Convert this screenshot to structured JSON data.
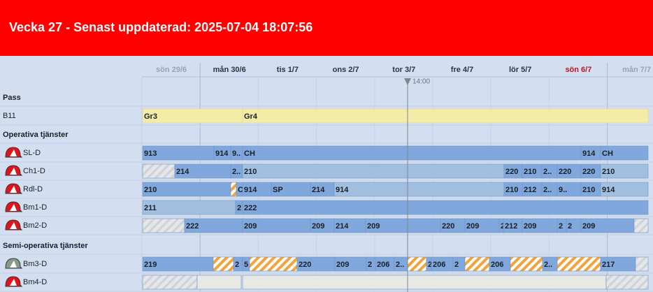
{
  "header": {
    "title": "Vecka 27 - Senast uppdaterad: 2025-07-04 18:07:56"
  },
  "days": [
    {
      "label": "sön 29/6",
      "color": "#9aa4b0"
    },
    {
      "label": "mån 30/6",
      "color": "#2b3340"
    },
    {
      "label": "tis 1/7",
      "color": "#2b3340"
    },
    {
      "label": "ons 2/7",
      "color": "#2b3340"
    },
    {
      "label": "tor 3/7",
      "color": "#2b3340"
    },
    {
      "label": "fre 4/7",
      "color": "#2b3340"
    },
    {
      "label": "lör 5/7",
      "color": "#2b3340"
    },
    {
      "label": "sön 6/7",
      "color": "#c0141c"
    },
    {
      "label": "mån 7/7",
      "color": "#9aa4b0"
    }
  ],
  "now_label": "14:00",
  "sections": [
    "Pass",
    "Operativa tjänster",
    "Semi-operativa tjänster"
  ],
  "rows": [
    {
      "label": "B11",
      "blocks": [
        "Gr3",
        "Gr4"
      ]
    },
    {
      "label": "SL-D",
      "blocks": [
        "913",
        "914",
        "9..",
        "CH",
        "914",
        "CH"
      ]
    },
    {
      "label": "Ch1-D",
      "blocks": [
        "214",
        "2..",
        "210",
        "220",
        "210",
        "2..",
        "220",
        "220",
        "210"
      ]
    },
    {
      "label": "Rdl-D",
      "blocks": [
        "210",
        "C",
        "914",
        "SP",
        "214",
        "914",
        "210",
        "212",
        "2..",
        "9..",
        "210",
        "914"
      ]
    },
    {
      "label": "Bm1-D",
      "blocks": [
        "211",
        "2",
        "222"
      ]
    },
    {
      "label": "Bm2-D",
      "blocks": [
        "222",
        "209",
        "209",
        "214",
        "209",
        "220",
        "209",
        "2",
        "212",
        "209",
        "2",
        "2",
        "209"
      ]
    },
    {
      "label": "Bm3-D",
      "blocks": [
        "219",
        "2",
        "5",
        "220",
        "209",
        "2",
        "206",
        "2..",
        "2",
        "206",
        "2",
        "206",
        "2..",
        "217"
      ]
    },
    {
      "label": "Bm4-D",
      "blocks": []
    }
  ]
}
